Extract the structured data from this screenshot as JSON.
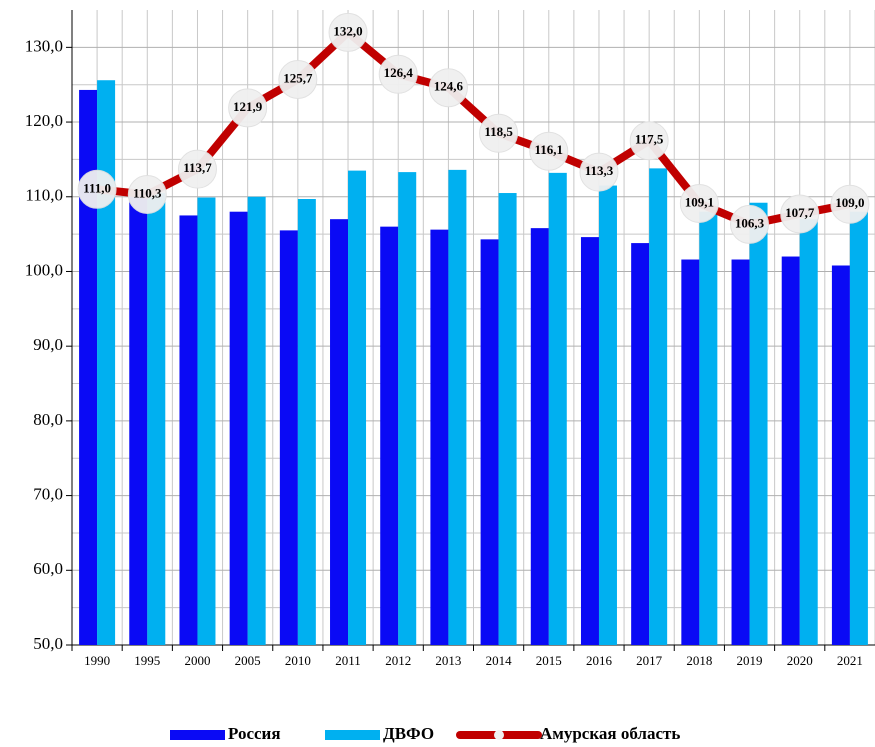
{
  "chart_data": {
    "type": "bar_line",
    "categories": [
      "1990",
      "1995",
      "2000",
      "2005",
      "2010",
      "2011",
      "2012",
      "2013",
      "2014",
      "2015",
      "2016",
      "2017",
      "2018",
      "2019",
      "2020",
      "2021"
    ],
    "series": [
      {
        "name": "Россия",
        "color": "#0a0af5",
        "type": "bar",
        "values": [
          124.3,
          110.0,
          107.5,
          108.0,
          105.5,
          107.0,
          106.0,
          105.6,
          104.3,
          105.8,
          104.6,
          103.8,
          101.6,
          101.6,
          102.0,
          100.8
        ]
      },
      {
        "name": "ДВФО",
        "color": "#00b0f0",
        "type": "bar",
        "values": [
          125.6,
          110.5,
          109.9,
          110.0,
          109.7,
          113.5,
          113.3,
          113.6,
          110.5,
          113.2,
          111.5,
          113.8,
          108.0,
          109.2,
          107.0,
          108.0
        ]
      },
      {
        "name": "Амурская область",
        "color": "#c00000",
        "type": "line",
        "values": [
          111.0,
          110.3,
          113.7,
          121.9,
          125.7,
          132.0,
          126.4,
          124.6,
          118.5,
          116.1,
          113.3,
          117.5,
          109.1,
          106.3,
          107.7,
          109.0
        ],
        "value_labels": [
          "111,0",
          "110,3",
          "113,7",
          "121,9",
          "125,7",
          "132,0",
          "126,4",
          "124,6",
          "118,5",
          "116,1",
          "113,3",
          "117,5",
          "109,1",
          "106,3",
          "107,7",
          "109,0"
        ]
      }
    ],
    "ylim": [
      50,
      135
    ],
    "yticks": [
      {
        "value": 50,
        "label": "50,0"
      },
      {
        "value": 60,
        "label": "60,0"
      },
      {
        "value": 70,
        "label": "70,0"
      },
      {
        "value": 80,
        "label": "80,0"
      },
      {
        "value": 90,
        "label": "90,0"
      },
      {
        "value": 100,
        "label": "100,0"
      },
      {
        "value": 110,
        "label": "110,0"
      },
      {
        "value": 120,
        "label": "120,0"
      },
      {
        "value": 130,
        "label": "130,0"
      }
    ],
    "grid": true,
    "legend": "bottom"
  }
}
